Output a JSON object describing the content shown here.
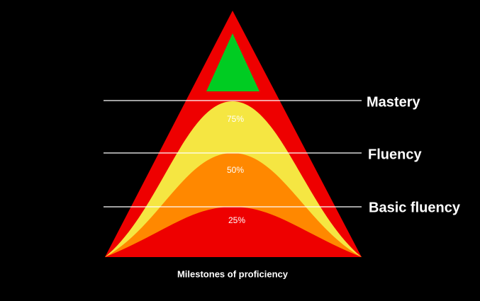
{
  "milestones": [
    "Mastery",
    "Fluency",
    "Basic fluency"
  ],
  "layers": [
    "75%",
    "50%",
    "25%"
  ],
  "caption": "Milestones of proficiency"
}
